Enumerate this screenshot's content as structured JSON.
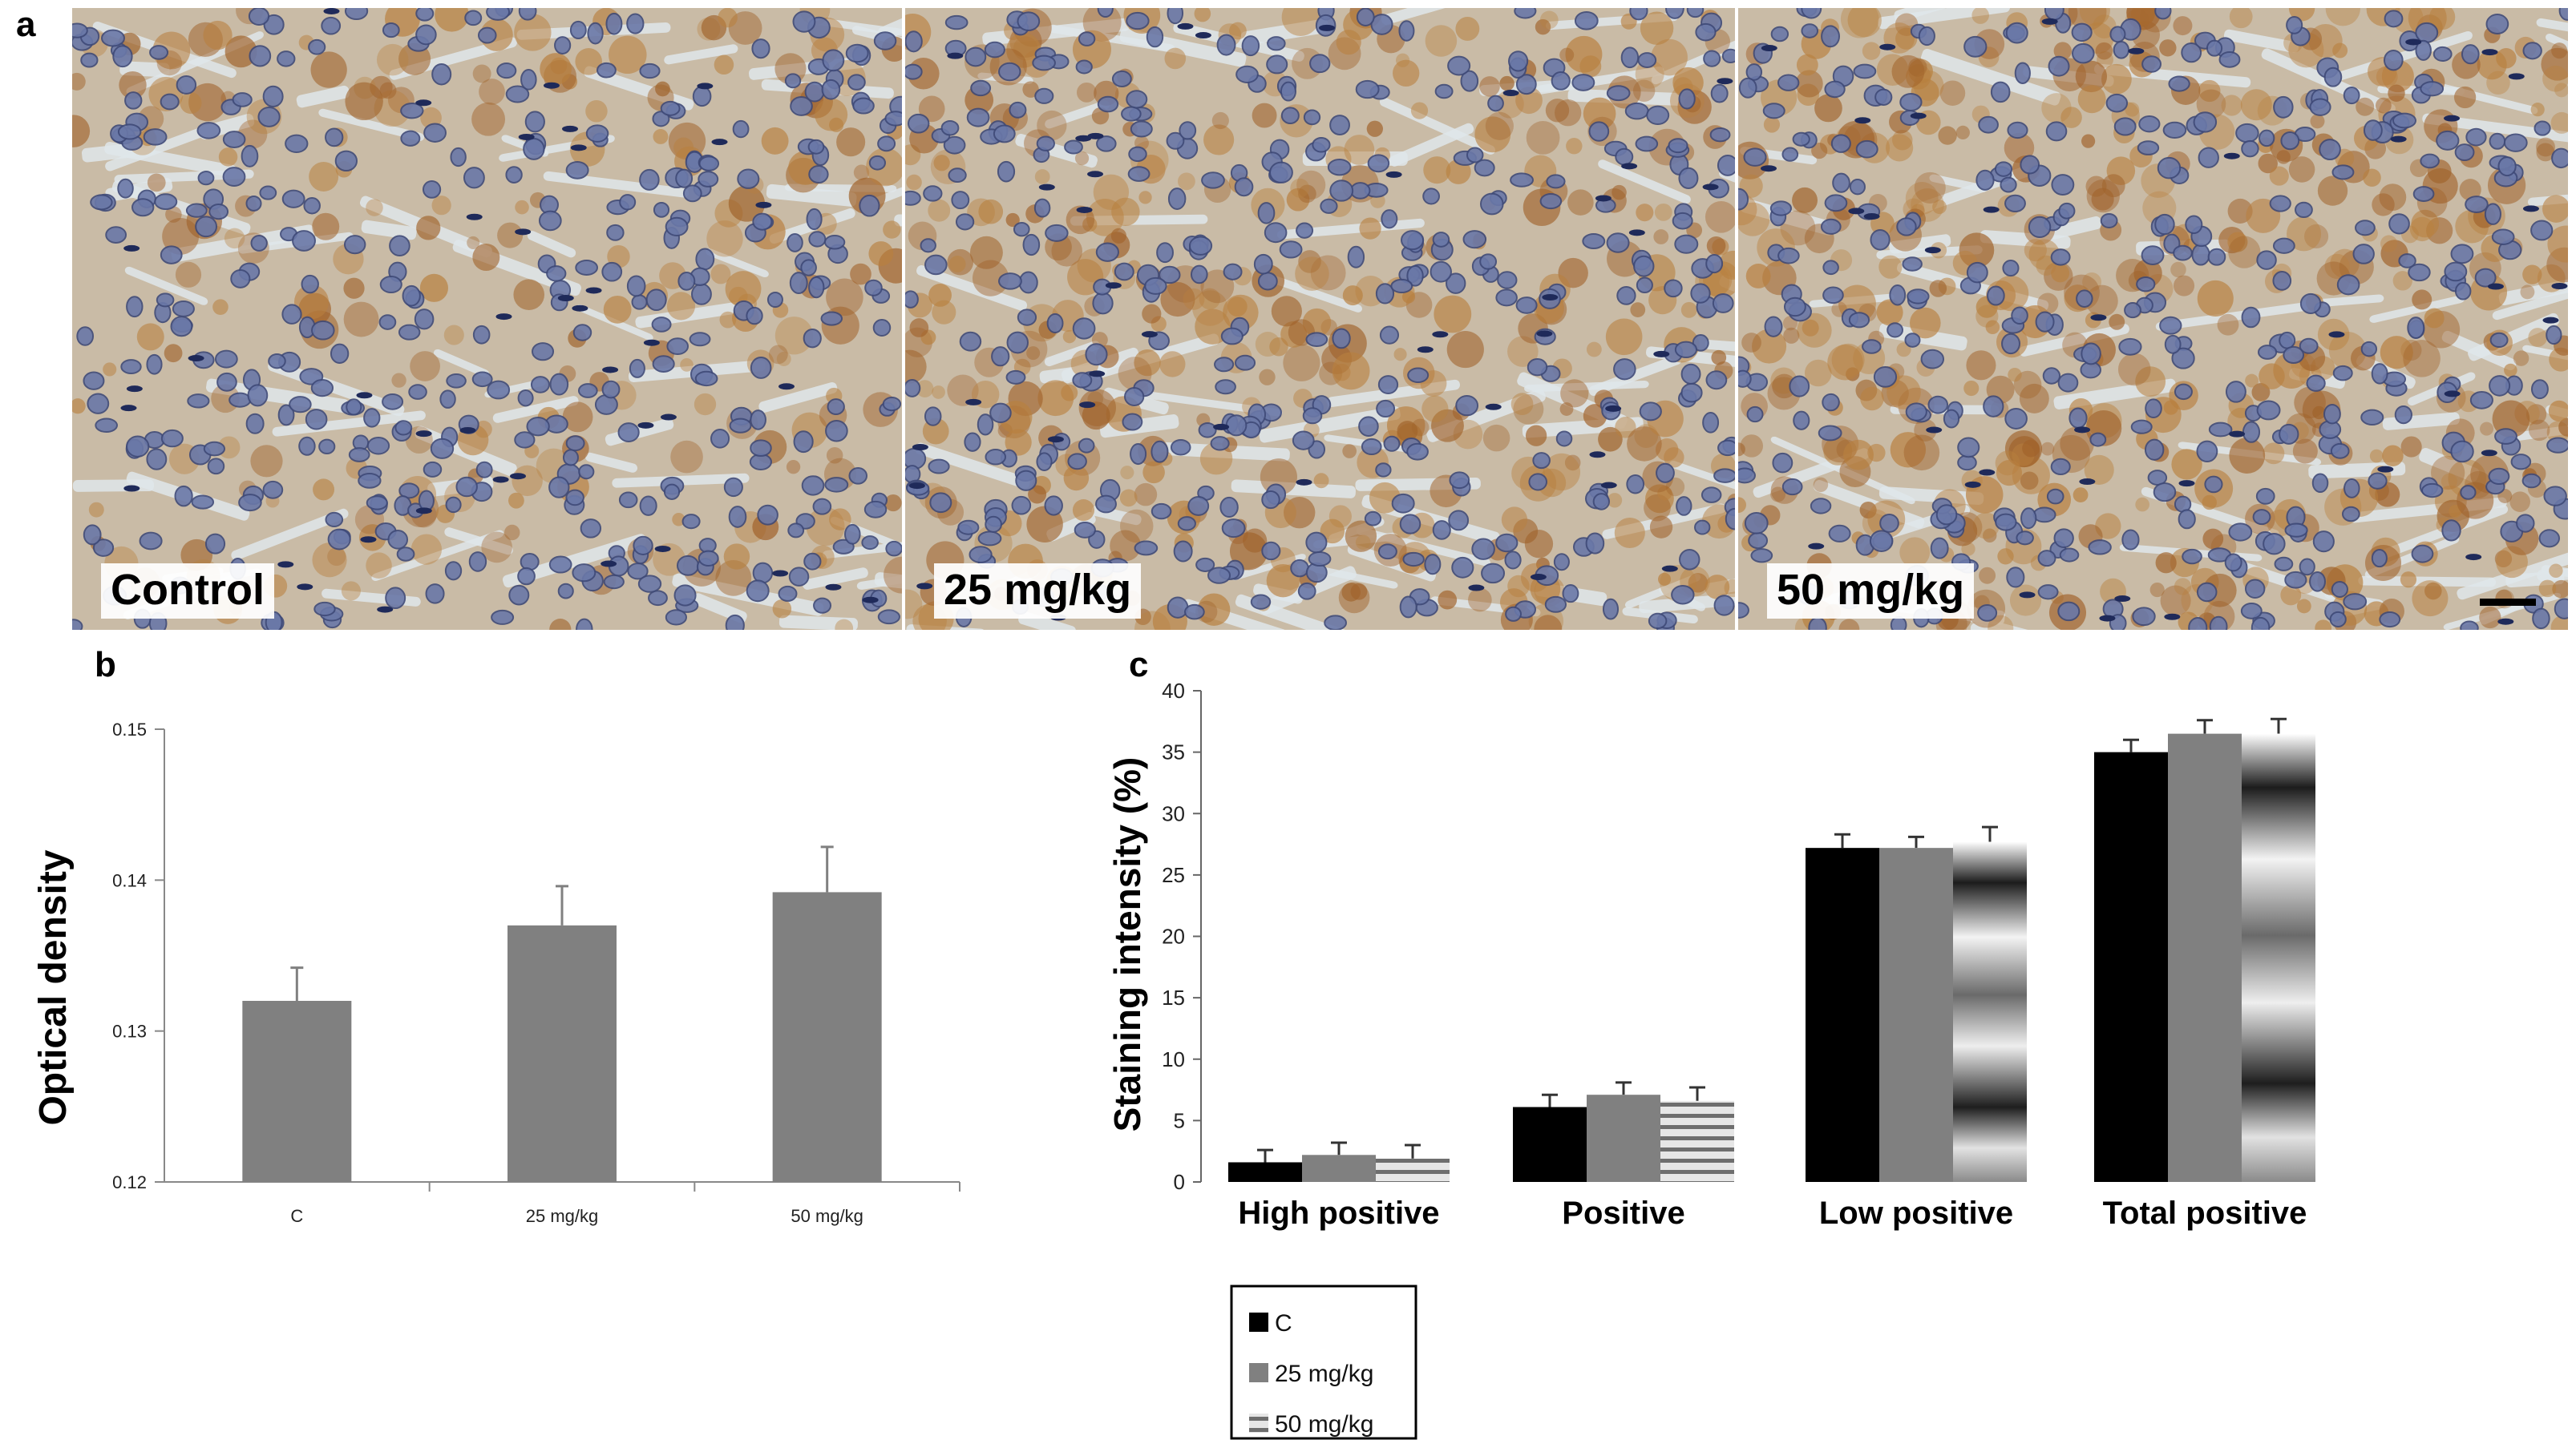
{
  "panel_a": {
    "letter": "a",
    "images": [
      {
        "label": "Control",
        "stain": "light"
      },
      {
        "label": "25 mg/kg",
        "stain": "medium"
      },
      {
        "label": "50 mg/kg",
        "stain": "heavy"
      }
    ]
  },
  "chart_data": [
    {
      "panel": "b",
      "type": "bar",
      "ylabel": "Optical density",
      "categories": [
        "C",
        "25 mg/kg",
        "50 mg/kg"
      ],
      "values": [
        0.132,
        0.137,
        0.1392
      ],
      "errors": [
        0.0022,
        0.0026,
        0.003
      ],
      "ylim": [
        0.12,
        0.15
      ],
      "yticks": [
        "0.12",
        "0.13",
        "0.14",
        "0.15"
      ],
      "grid": false,
      "colors": {
        "bar": "#808080",
        "axis": "#888888"
      }
    },
    {
      "panel": "c",
      "type": "bar",
      "ylabel": "Staining intensity (%)",
      "categories": [
        "High positive",
        "Positive",
        "Low positive",
        "Total positive"
      ],
      "series": [
        {
          "name": "C",
          "values": [
            1.6,
            6.1,
            27.2,
            35.0
          ],
          "errors": [
            1.0,
            1.0,
            1.1,
            1.0
          ]
        },
        {
          "name": "25 mg/kg",
          "values": [
            2.2,
            7.1,
            27.2,
            36.5
          ],
          "errors": [
            1.0,
            1.0,
            0.9,
            1.1
          ]
        },
        {
          "name": "50 mg/kg",
          "values": [
            1.9,
            6.6,
            27.7,
            36.5
          ],
          "errors": [
            1.1,
            1.1,
            1.2,
            1.2
          ]
        }
      ],
      "ylim": [
        0,
        40
      ],
      "yticks": [
        "0",
        "5",
        "10",
        "15",
        "20",
        "25",
        "30",
        "35",
        "40"
      ],
      "grid": false,
      "legend_position": "bottom-left",
      "colors": {
        "C": "#000000",
        "25 mg/kg": "#808080",
        "50 mg/kg": "#d8d8d8"
      }
    }
  ]
}
